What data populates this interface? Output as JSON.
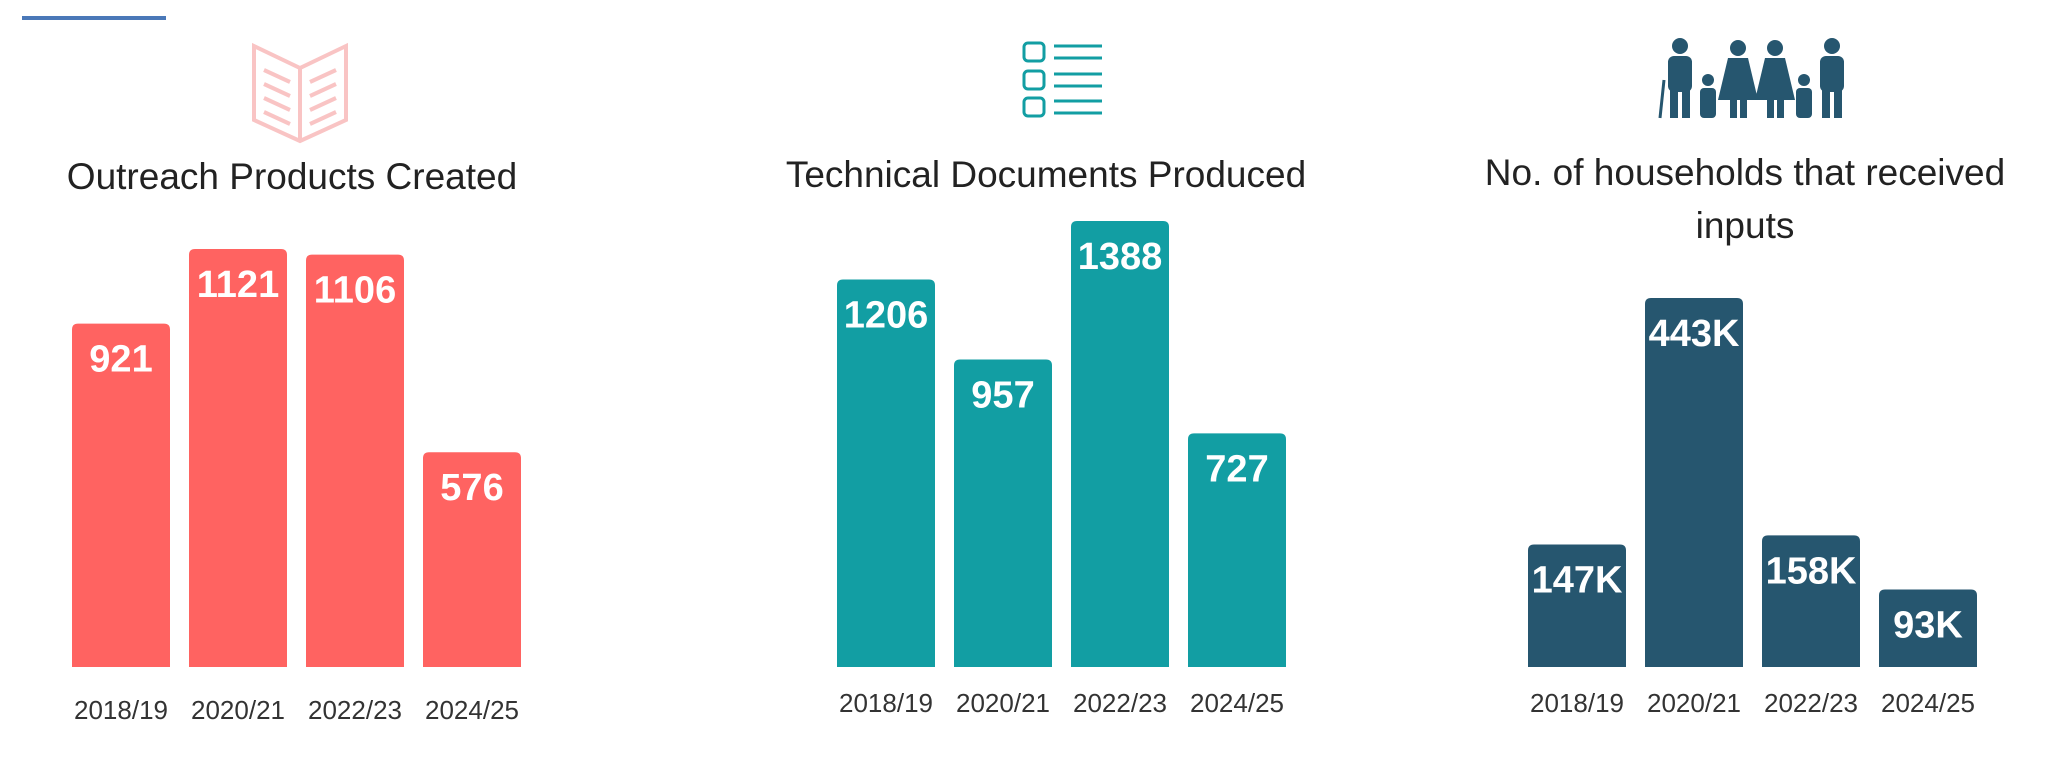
{
  "chart_data": [
    {
      "type": "bar",
      "title": "Outreach Products Created",
      "categories": [
        "2018/19",
        "2020/21",
        "2022/23",
        "2024/25"
      ],
      "values": [
        921,
        1121,
        1106,
        576
      ],
      "color": "#ff6361"
    },
    {
      "type": "bar",
      "title": "Technical Documents Produced",
      "categories": [
        "2018/19",
        "2020/21",
        "2022/23",
        "2024/25"
      ],
      "values": [
        1206,
        957,
        1388,
        727
      ],
      "color": "#129ea3"
    },
    {
      "type": "bar",
      "title": "No. of households that received inputs",
      "categories": [
        "2018/19",
        "2020/21",
        "2022/23",
        "2024/25"
      ],
      "values": [
        147,
        443,
        158,
        93
      ],
      "value_labels": [
        "147K",
        "443K",
        "158K",
        "93K"
      ],
      "color": "#26566f"
    }
  ]
}
